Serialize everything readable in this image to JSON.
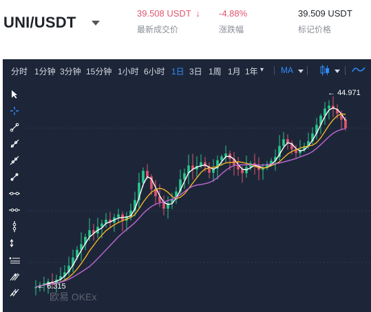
{
  "header": {
    "pair": "UNI/USDT",
    "last_price": "39.508 USDT",
    "last_price_arrow": "↓",
    "last_price_label": "最新成交价",
    "change": "-4.88%",
    "change_label": "涨跌幅",
    "mark_price": "39.509 USDT",
    "mark_price_label": "标记价格"
  },
  "colors": {
    "panel_bg": "#1d2638",
    "accent": "#2f8dff",
    "down": "#e0566f",
    "up_candle": "#29c98d",
    "down_candle": "#e0566f",
    "ma_white": "#ffffff",
    "ma_yellow": "#f3b22b",
    "ma_purple": "#c16ad6"
  },
  "toolbar": {
    "timeframes": [
      "分时",
      "1分钟",
      "3分钟",
      "15分钟",
      "1小时",
      "6小时",
      "1日",
      "3日",
      "1周",
      "1月",
      "1年"
    ],
    "active_timeframe": "1日",
    "year_caret": "▾",
    "indicator": "MA"
  },
  "sidebar_tools": [
    "cursor-arrow-icon",
    "crosshair-icon",
    "trend-line-icon",
    "ray-line-icon",
    "extended-line-icon",
    "segment-icon",
    "horizontal-line-icon",
    "horizontal-ray-icon",
    "vertical-line-icon",
    "price-range-icon",
    "parallel-channel-icon",
    "pitchfork-icon",
    "fib-icon"
  ],
  "chart_labels": {
    "high": "44.971",
    "low": "6.315",
    "watermark": "欧易 OKEx"
  },
  "chart_data": {
    "type": "candlestick",
    "high_marker": 44.971,
    "low_marker": 6.315,
    "closes": [
      6.3,
      6.8,
      7.1,
      7.5,
      7.2,
      7.9,
      8.6,
      9.4,
      10.8,
      12.5,
      14.1,
      15.3,
      16.8,
      18.2,
      17.5,
      18.9,
      19.6,
      20.4,
      19.8,
      20.9,
      21.5,
      20.2,
      21.1,
      22.3,
      24.5,
      28.1,
      30.6,
      29.4,
      26.8,
      25.3,
      24.1,
      22.7,
      23.9,
      24.6,
      26.3,
      28.8,
      30.1,
      31.7,
      30.9,
      31.6,
      32.4,
      31.5,
      30.2,
      31.1,
      32.8,
      33.6,
      34.2,
      33.1,
      31.8,
      30.9,
      30.1,
      31.4,
      32.2,
      31.6,
      30.8,
      31.2,
      31.9,
      32.7,
      33.5,
      35.8,
      37.2,
      36.4,
      35.1,
      34.3,
      34.9,
      35.7,
      36.8,
      38.4,
      40.2,
      42.1,
      43.6,
      44.2,
      43.5,
      42.6,
      41.3,
      39.5
    ]
  }
}
